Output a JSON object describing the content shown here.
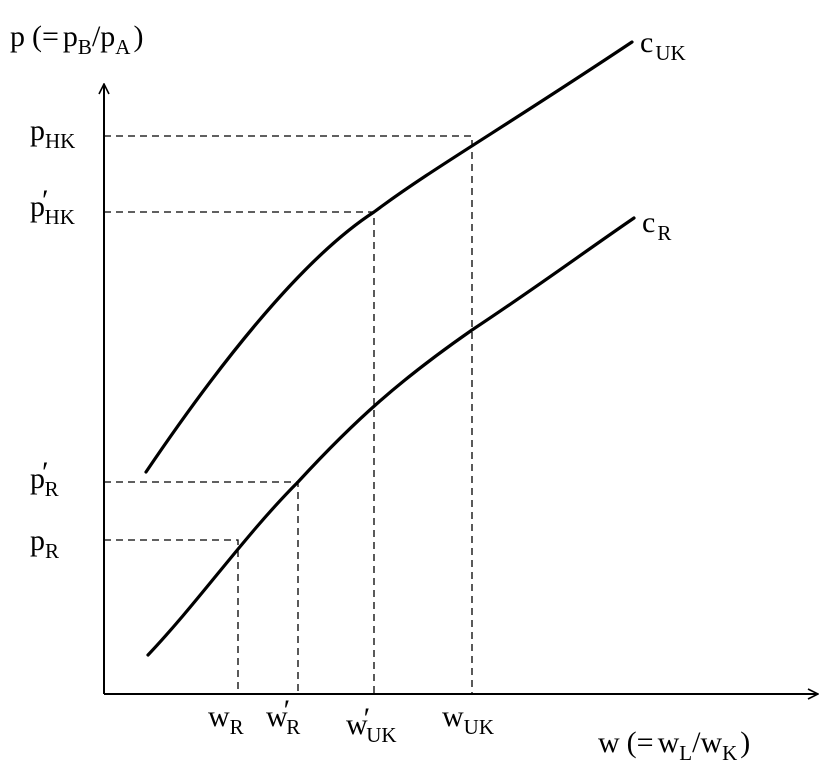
{
  "axes": {
    "y_label": {
      "main": "p",
      "open": "(=",
      "num": "p",
      "num_sub": "B",
      "slash": "/",
      "den": "p",
      "den_sub": "A",
      "close": ")"
    },
    "x_label": {
      "main": "w",
      "open": "(=",
      "num": "w",
      "num_sub": "L",
      "slash": "/",
      "den": "w",
      "den_sub": "K",
      "close": ")"
    }
  },
  "curves": [
    {
      "name": "c",
      "sub": "UK"
    },
    {
      "name": "c",
      "sub": "R"
    }
  ],
  "y_ticks": [
    {
      "base": "p",
      "prime": "",
      "sub": "HK"
    },
    {
      "base": "p",
      "prime": "′",
      "sub": "HK"
    },
    {
      "base": "p",
      "prime": "′",
      "sub": "R"
    },
    {
      "base": "p",
      "prime": "",
      "sub": "R"
    }
  ],
  "x_ticks": [
    {
      "base": "w",
      "prime": "",
      "sub": "R"
    },
    {
      "base": "w",
      "prime": "′",
      "sub": "R"
    },
    {
      "base": "w",
      "prime": "′",
      "sub": "UK"
    },
    {
      "base": "w",
      "prime": "",
      "sub": "UK"
    }
  ]
}
